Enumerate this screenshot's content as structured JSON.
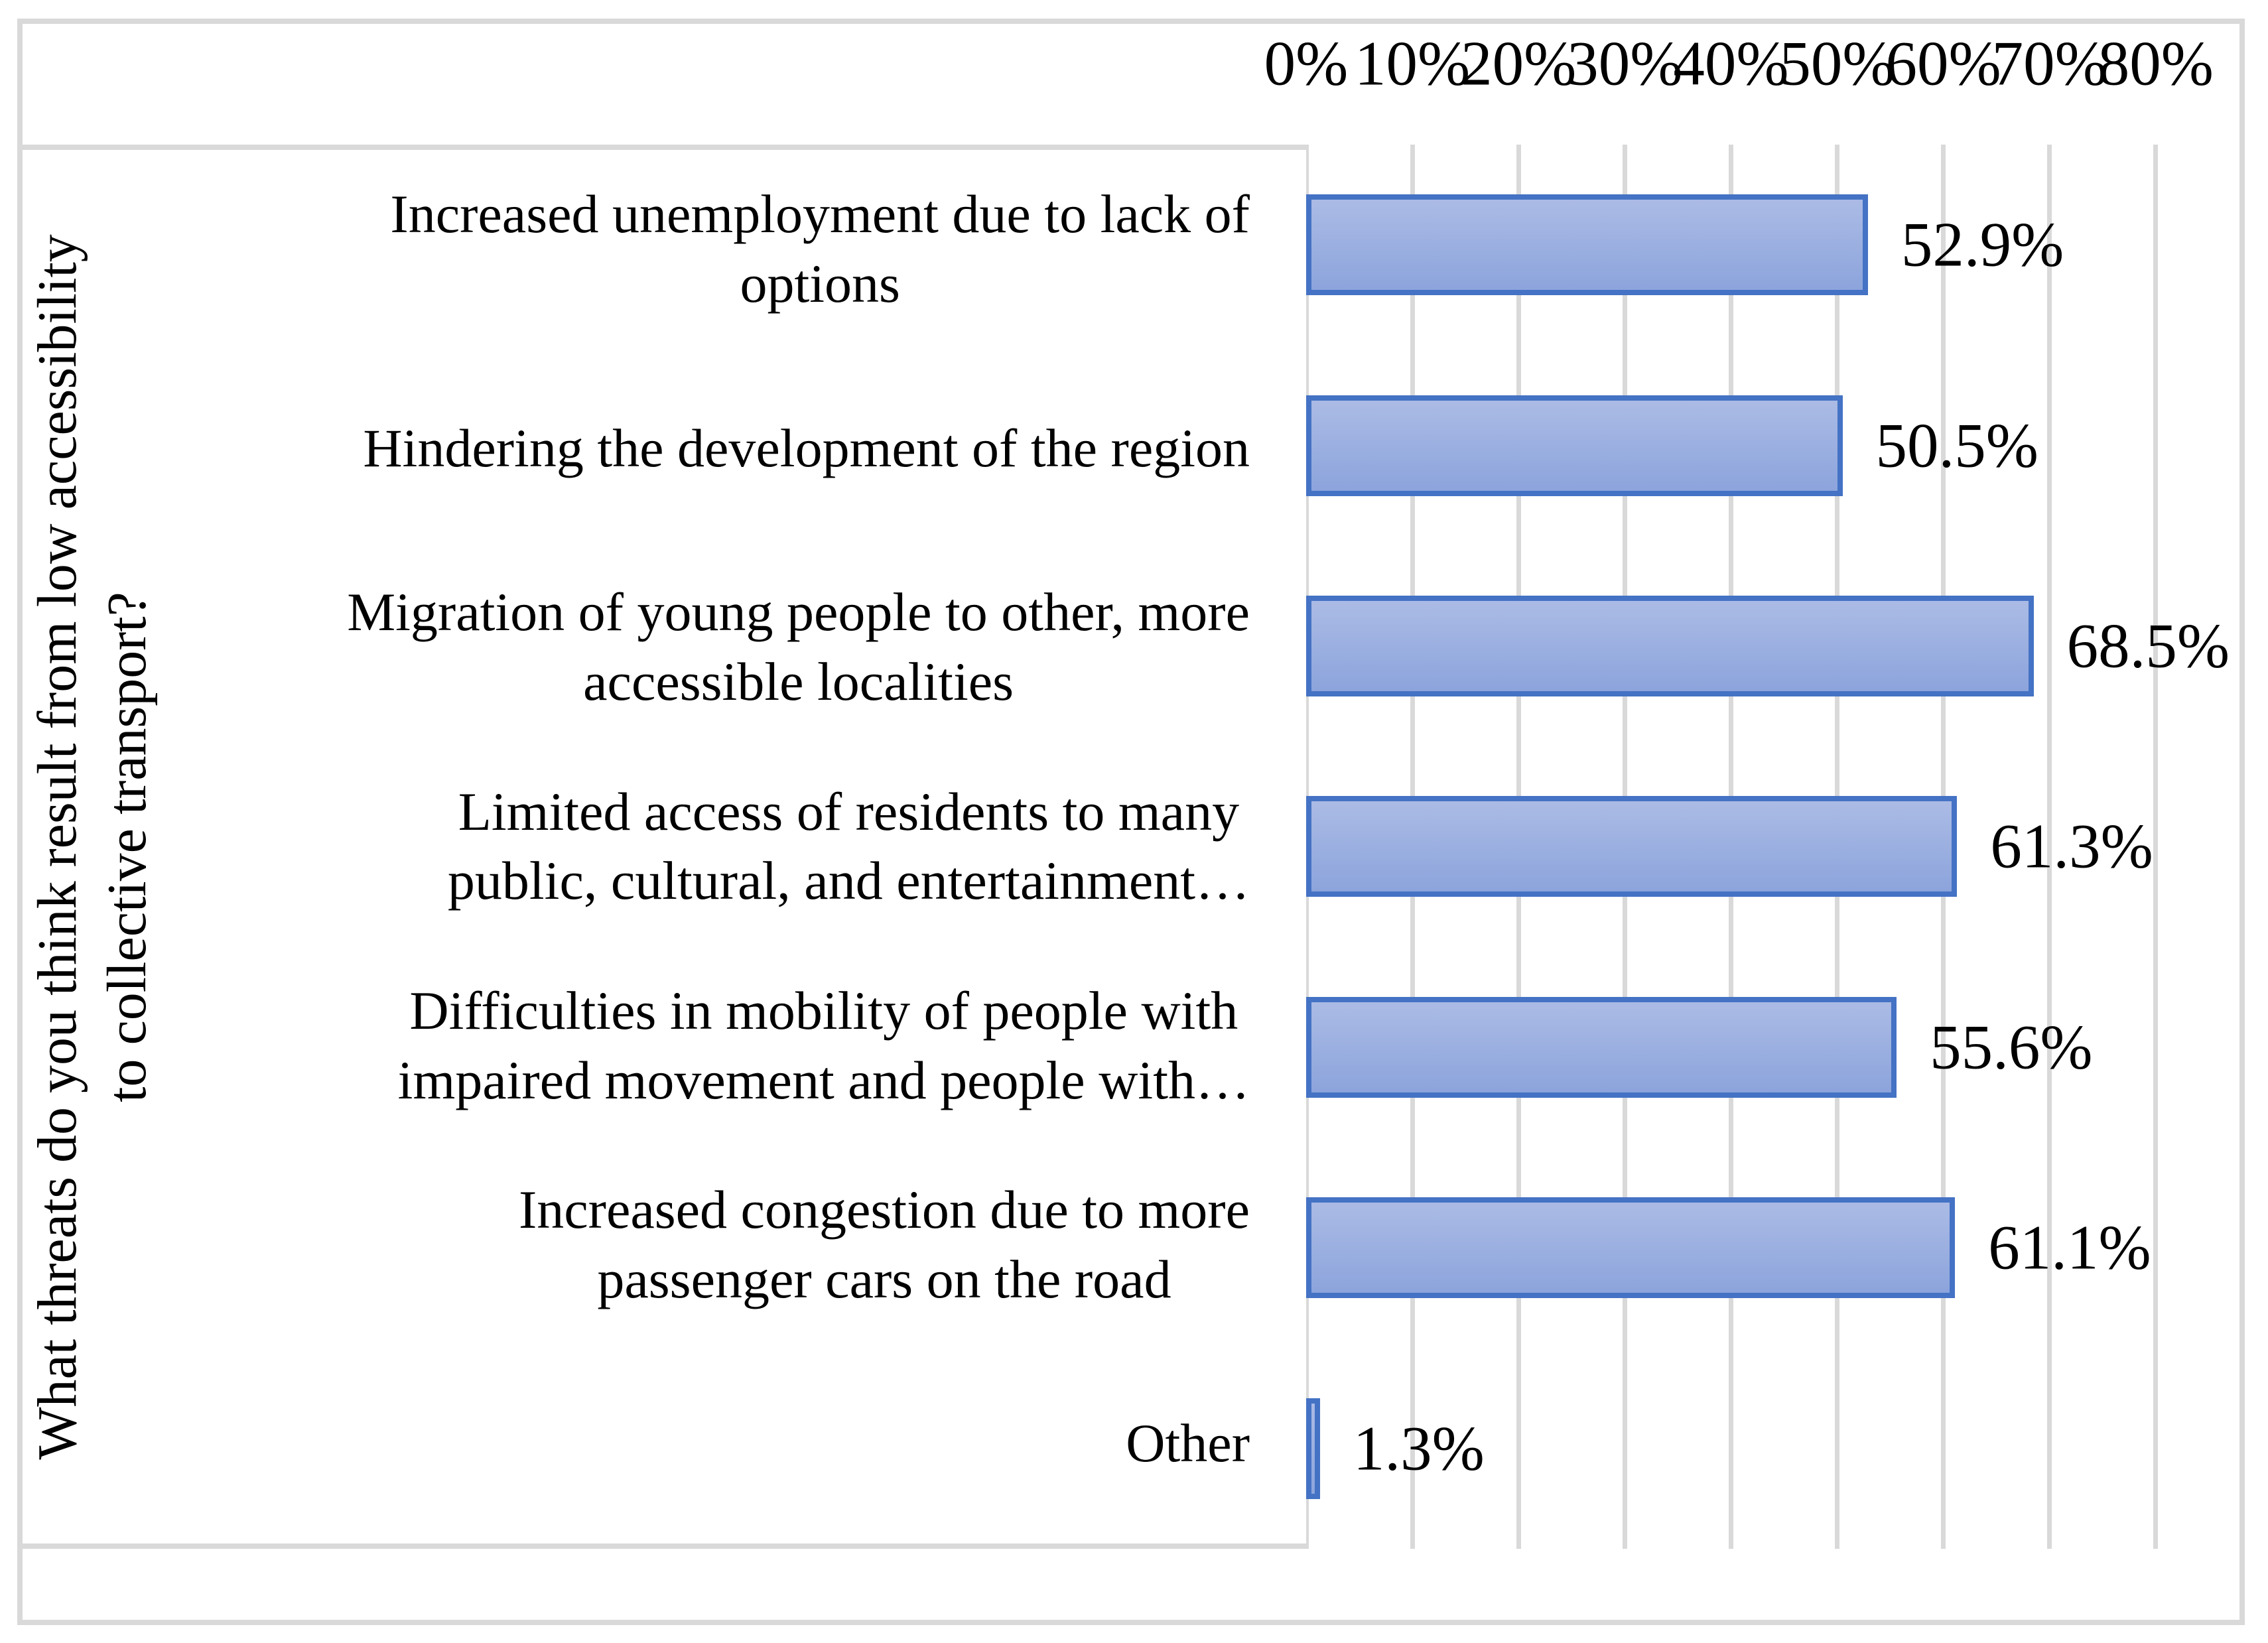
{
  "chart_data": {
    "type": "bar",
    "orientation": "horizontal",
    "y_axis_title_lines": [
      "What threats do you think result from low accessibility",
      "to collective transport?"
    ],
    "categories": [
      {
        "label_lines": [
          "Increased unemployment due to lack of",
          "options"
        ],
        "value": 52.9,
        "value_label": "52.9%"
      },
      {
        "label_lines": [
          "Hindering the development of the region"
        ],
        "value": 50.5,
        "value_label": "50.5%"
      },
      {
        "label_lines": [
          "Migration of young people to other, more",
          "accessible localities"
        ],
        "value": 68.5,
        "value_label": "68.5%"
      },
      {
        "label_lines": [
          "Limited access of residents to many",
          "public, cultural, and entertainment…"
        ],
        "value": 61.3,
        "value_label": "61.3%"
      },
      {
        "label_lines": [
          "Difficulties in mobility of people with",
          "impaired movement and people with…"
        ],
        "value": 55.6,
        "value_label": "55.6%"
      },
      {
        "label_lines": [
          "Increased congestion due to more",
          "passenger cars on the road"
        ],
        "value": 61.1,
        "value_label": "61.1%"
      },
      {
        "label_lines": [
          "Other"
        ],
        "value": 1.3,
        "value_label": "1.3%"
      }
    ],
    "x_ticks": [
      {
        "label": "0%",
        "value": 0
      },
      {
        "label": "10%",
        "value": 10
      },
      {
        "label": "20%",
        "value": 20
      },
      {
        "label": "30%",
        "value": 30
      },
      {
        "label": "40%",
        "value": 40
      },
      {
        "label": "50%",
        "value": 50
      },
      {
        "label": "60%",
        "value": 60
      },
      {
        "label": "70%",
        "value": 70
      },
      {
        "label": "80%",
        "value": 80
      }
    ],
    "xlim": [
      0,
      87.9
    ],
    "grid": true,
    "legend": "none",
    "colors": {
      "bar_border": "#4472c4",
      "bar_fill_top": "#abbbe5",
      "bar_fill_bottom": "#8ca4dc",
      "gridline": "#d9d9d9",
      "frame": "#d9d9d9",
      "text": "#000000"
    }
  }
}
